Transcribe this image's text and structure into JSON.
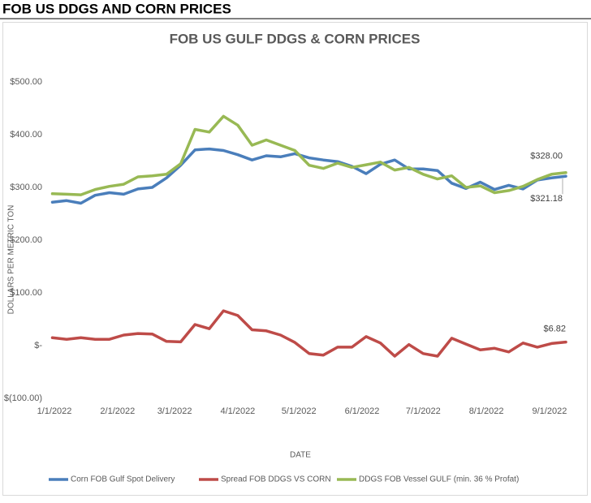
{
  "header": {
    "title": "FOB US DDGS AND CORN PRICES"
  },
  "chart_data": {
    "type": "line",
    "title": "FOB US GULF DDGS & CORN PRICES",
    "x_label": "DATE",
    "y_label": "DOLLARS PER METRIC TON",
    "x": [
      "2021-12-31",
      "2022-01-07",
      "2022-01-14",
      "2022-01-21",
      "2022-01-28",
      "2022-02-04",
      "2022-02-11",
      "2022-02-18",
      "2022-02-25",
      "2022-03-04",
      "2022-03-11",
      "2022-03-18",
      "2022-03-25",
      "2022-04-01",
      "2022-04-08",
      "2022-04-15",
      "2022-04-22",
      "2022-04-29",
      "2022-05-06",
      "2022-05-13",
      "2022-05-20",
      "2022-05-27",
      "2022-06-03",
      "2022-06-10",
      "2022-06-17",
      "2022-06-24",
      "2022-07-01",
      "2022-07-08",
      "2022-07-15",
      "2022-07-22",
      "2022-07-29",
      "2022-08-05",
      "2022-08-12",
      "2022-08-19",
      "2022-08-26",
      "2022-09-02",
      "2022-09-09"
    ],
    "xlim": [
      "2021-12-30",
      "2022-09-09"
    ],
    "xticks": [
      {
        "value": "2022-01-01",
        "label": "1/1/2022"
      },
      {
        "value": "2022-02-01",
        "label": "2/1/2022"
      },
      {
        "value": "2022-03-01",
        "label": "3/1/2022"
      },
      {
        "value": "2022-04-01",
        "label": "4/1/2022"
      },
      {
        "value": "2022-05-01",
        "label": "5/1/2022"
      },
      {
        "value": "2022-06-01",
        "label": "6/1/2022"
      },
      {
        "value": "2022-07-01",
        "label": "7/1/2022"
      },
      {
        "value": "2022-08-01",
        "label": "8/1/2022"
      },
      {
        "value": "2022-09-01",
        "label": "9/1/2022"
      }
    ],
    "ylim": [
      -100,
      500
    ],
    "yticks": [
      {
        "value": 500,
        "label": "$500.00"
      },
      {
        "value": 400,
        "label": "$400.00"
      },
      {
        "value": 300,
        "label": "$300.00"
      },
      {
        "value": 200,
        "label": "$200.00"
      },
      {
        "value": 100,
        "label": "$100.00"
      },
      {
        "value": 0,
        "label": "$-"
      },
      {
        "value": -100,
        "label": "$(100.00)"
      }
    ],
    "series": [
      {
        "name": "Corn FOB Gulf Spot Delivery",
        "color": "#4a7ebb",
        "values": [
          272,
          275,
          270,
          285,
          290,
          287,
          297,
          300,
          318,
          342,
          371,
          373,
          370,
          362,
          352,
          360,
          358,
          364,
          356,
          352,
          349,
          340,
          326,
          344,
          352,
          335,
          335,
          332,
          308,
          298,
          310,
          296,
          304,
          297,
          314,
          318,
          321.18
        ],
        "value_labels": [
          null,
          null,
          null,
          null,
          null,
          null,
          null,
          null,
          null,
          null,
          null,
          null,
          null,
          null,
          null,
          null,
          null,
          null,
          null,
          null,
          null,
          null,
          null,
          null,
          null,
          null,
          null,
          null,
          null,
          null,
          null,
          null,
          null,
          null,
          null,
          null,
          "$321.18"
        ]
      },
      {
        "name": "Spread FOB DDGS VS CORN",
        "color": "#be4b48",
        "values": [
          15,
          12,
          15,
          12,
          12,
          20,
          23,
          22,
          8,
          7,
          40,
          32,
          66,
          57,
          30,
          28,
          20,
          6,
          -15,
          -18,
          -3,
          -3,
          17,
          5,
          -20,
          2,
          -15,
          -20,
          14,
          3,
          -8,
          -5,
          -12,
          5,
          -3,
          4,
          6.82
        ],
        "value_labels": [
          null,
          null,
          null,
          null,
          null,
          null,
          null,
          null,
          null,
          null,
          null,
          null,
          null,
          null,
          null,
          null,
          null,
          null,
          null,
          null,
          null,
          null,
          null,
          null,
          null,
          null,
          null,
          null,
          null,
          null,
          null,
          null,
          null,
          null,
          null,
          null,
          "$6.82"
        ]
      },
      {
        "name": "DDGS FOB Vessel GULF  (min. 36 % Profat)",
        "color": "#98b954",
        "values": [
          288,
          287,
          286,
          296,
          302,
          306,
          320,
          322,
          325,
          345,
          410,
          405,
          435,
          418,
          380,
          390,
          380,
          370,
          342,
          336,
          346,
          338,
          343,
          348,
          333,
          338,
          325,
          316,
          322,
          300,
          303,
          290,
          294,
          302,
          315,
          325,
          328
        ],
        "value_labels": [
          null,
          null,
          null,
          null,
          null,
          null,
          null,
          null,
          null,
          null,
          null,
          null,
          null,
          null,
          null,
          null,
          null,
          null,
          null,
          null,
          null,
          null,
          null,
          null,
          null,
          null,
          null,
          null,
          null,
          null,
          null,
          null,
          null,
          null,
          null,
          null,
          "$328.00"
        ]
      }
    ]
  }
}
